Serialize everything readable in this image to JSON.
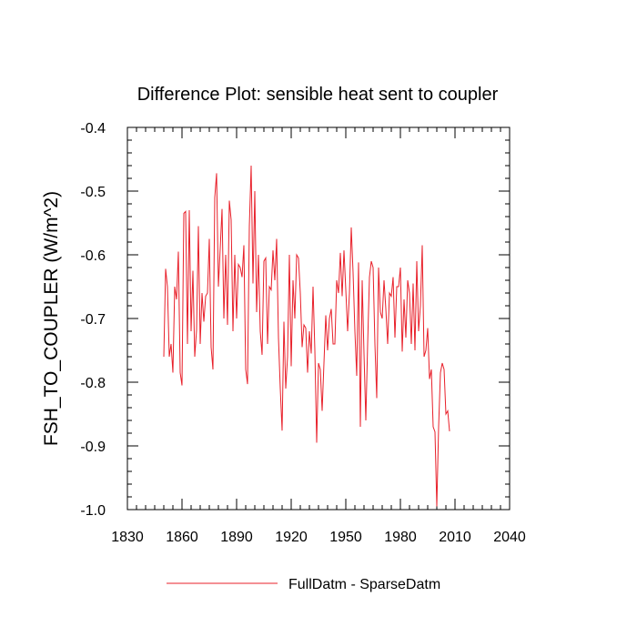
{
  "chart_data": {
    "type": "line",
    "title": "Difference Plot: sensible heat sent to coupler",
    "xlabel": "",
    "ylabel": "FSH_TO_COUPLER  (W/m^2)",
    "xlim": [
      1830,
      2040
    ],
    "ylim": [
      -1.0,
      -0.4
    ],
    "x_ticks": [
      1830,
      1860,
      1890,
      1920,
      1950,
      1980,
      2010,
      2040
    ],
    "x_tick_labels": [
      "1830",
      "1860",
      "1890",
      "1920",
      "1950",
      "1980",
      "2010",
      "2040"
    ],
    "y_ticks": [
      -1.0,
      -0.9,
      -0.8,
      -0.7,
      -0.6,
      -0.5,
      -0.4
    ],
    "y_tick_labels": [
      "-1.0",
      "-0.9",
      "-0.8",
      "-0.7",
      "-0.6",
      "-0.5",
      "-0.4"
    ],
    "grid": false,
    "legend_position": "bottom-center",
    "series": [
      {
        "name": "FullDatm - SparseDatm",
        "color": "#e8202a",
        "x_start": 1850,
        "x_step": 1,
        "values": [
          -0.76,
          -0.622,
          -0.65,
          -0.76,
          -0.74,
          -0.785,
          -0.65,
          -0.67,
          -0.595,
          -0.785,
          -0.805,
          -0.535,
          -0.532,
          -0.74,
          -0.53,
          -0.72,
          -0.625,
          -0.76,
          -0.718,
          -0.555,
          -0.74,
          -0.66,
          -0.705,
          -0.665,
          -0.66,
          -0.575,
          -0.745,
          -0.78,
          -0.51,
          -0.472,
          -0.65,
          -0.59,
          -0.528,
          -0.7,
          -0.6,
          -0.71,
          -0.515,
          -0.545,
          -0.72,
          -0.6,
          -0.7,
          -0.615,
          -0.62,
          -0.635,
          -0.585,
          -0.78,
          -0.803,
          -0.555,
          -0.46,
          -0.645,
          -0.5,
          -0.69,
          -0.6,
          -0.72,
          -0.757,
          -0.61,
          -0.605,
          -0.74,
          -0.65,
          -0.655,
          -0.593,
          -0.64,
          -0.575,
          -0.73,
          -0.81,
          -0.876,
          -0.705,
          -0.81,
          -0.76,
          -0.6,
          -0.775,
          -0.64,
          -0.7,
          -0.6,
          -0.605,
          -0.66,
          -0.745,
          -0.71,
          -0.715,
          -0.785,
          -0.72,
          -0.755,
          -0.65,
          -0.75,
          -0.895,
          -0.77,
          -0.78,
          -0.845,
          -0.77,
          -0.695,
          -0.75,
          -0.7,
          -0.685,
          -0.74,
          -0.74,
          -0.64,
          -0.66,
          -0.597,
          -0.665,
          -0.593,
          -0.655,
          -0.72,
          -0.66,
          -0.557,
          -0.628,
          -0.72,
          -0.79,
          -0.612,
          -0.87,
          -0.64,
          -0.755,
          -0.86,
          -0.74,
          -0.635,
          -0.61,
          -0.62,
          -0.74,
          -0.825,
          -0.62,
          -0.69,
          -0.7,
          -0.64,
          -0.685,
          -0.74,
          -0.66,
          -0.665,
          -0.635,
          -0.73,
          -0.65,
          -0.65,
          -0.62,
          -0.752,
          -0.67,
          -0.73,
          -0.64,
          -0.66,
          -0.74,
          -0.645,
          -0.75,
          -0.61,
          -0.72,
          -0.68,
          -0.585,
          -0.76,
          -0.75,
          -0.715,
          -0.795,
          -0.78,
          -0.87,
          -0.878,
          -0.995,
          -0.87,
          -0.785,
          -0.77,
          -0.78,
          -0.85,
          -0.845,
          -0.877
        ]
      }
    ]
  }
}
